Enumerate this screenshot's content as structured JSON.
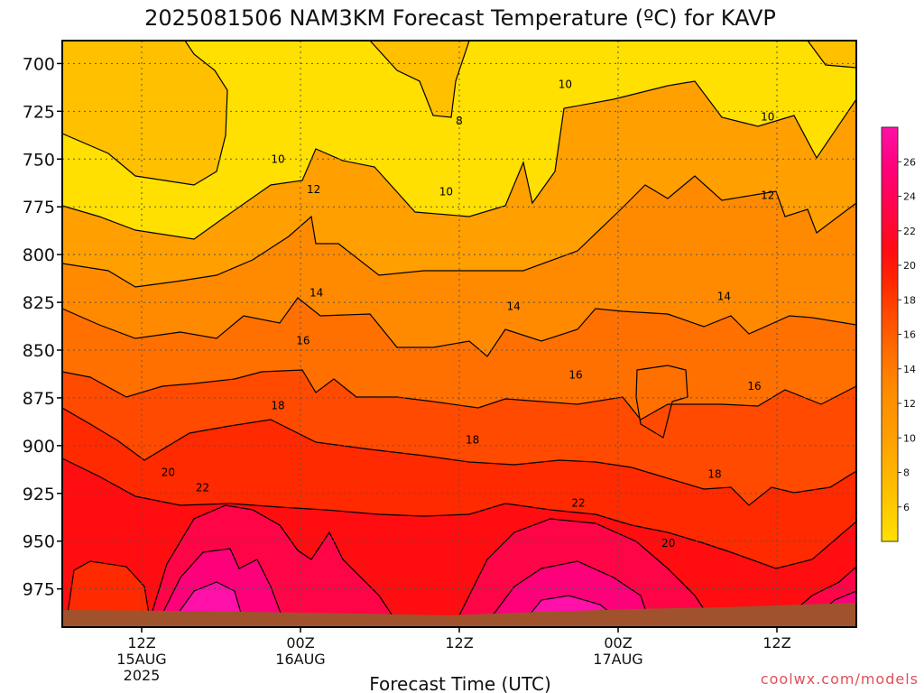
{
  "chart_data": {
    "type": "heatmap",
    "title": "2025081506 NAM3KM Forecast Temperature (ºC) for KAVP",
    "xlabel": "Forecast Time (UTC)",
    "ylabel": "",
    "y_axis": {
      "ticks": [
        "700",
        "725",
        "750",
        "775",
        "800",
        "825",
        "850",
        "875",
        "900",
        "925",
        "950",
        "975"
      ],
      "range_hPa": [
        688,
        995
      ],
      "inverted": true
    },
    "x_axis": {
      "range_hours_from_06Z_15AUG": [
        0,
        60
      ],
      "ticks": [
        {
          "hour": 6,
          "line1": "12Z",
          "line2": "15AUG",
          "line3": "2025"
        },
        {
          "hour": 18,
          "line1": "00Z",
          "line2": "16AUG",
          "line3": ""
        },
        {
          "hour": 30,
          "line1": "12Z",
          "line2": "",
          "line3": ""
        },
        {
          "hour": 42,
          "line1": "00Z",
          "line2": "17AUG",
          "line3": ""
        },
        {
          "hour": 54,
          "line1": "12Z",
          "line2": "",
          "line3": ""
        }
      ]
    },
    "grid": true,
    "colorbar": {
      "placement": "right",
      "ticks": [
        "6",
        "8",
        "10",
        "12",
        "14",
        "16",
        "18",
        "20",
        "22",
        "24",
        "26"
      ],
      "range": [
        4,
        28
      ]
    },
    "contour_labels": [
      {
        "hour": 30.0,
        "p": 730,
        "text": "8"
      },
      {
        "hour": 38.0,
        "p": 711,
        "text": "10"
      },
      {
        "hour": 53.3,
        "p": 728,
        "text": "10"
      },
      {
        "hour": 16.3,
        "p": 750,
        "text": "10"
      },
      {
        "hour": 29.0,
        "p": 767,
        "text": "10"
      },
      {
        "hour": 19.0,
        "p": 766,
        "text": "12"
      },
      {
        "hour": 53.3,
        "p": 769,
        "text": "12"
      },
      {
        "hour": 19.2,
        "p": 820,
        "text": "14"
      },
      {
        "hour": 34.1,
        "p": 827,
        "text": "14"
      },
      {
        "hour": 50.0,
        "p": 822,
        "text": "14"
      },
      {
        "hour": 18.2,
        "p": 845,
        "text": "16"
      },
      {
        "hour": 38.8,
        "p": 863,
        "text": "16"
      },
      {
        "hour": 52.3,
        "p": 869,
        "text": "16"
      },
      {
        "hour": 16.3,
        "p": 879,
        "text": "18"
      },
      {
        "hour": 31.0,
        "p": 897,
        "text": "18"
      },
      {
        "hour": 49.3,
        "p": 915,
        "text": "18"
      },
      {
        "hour": 8.0,
        "p": 914,
        "text": "20"
      },
      {
        "hour": 10.6,
        "p": 922,
        "text": "22"
      },
      {
        "hour": 39.0,
        "p": 930,
        "text": "22"
      },
      {
        "hour": 45.8,
        "p": 951,
        "text": "20"
      }
    ],
    "credit": "coolwx.com/models"
  }
}
